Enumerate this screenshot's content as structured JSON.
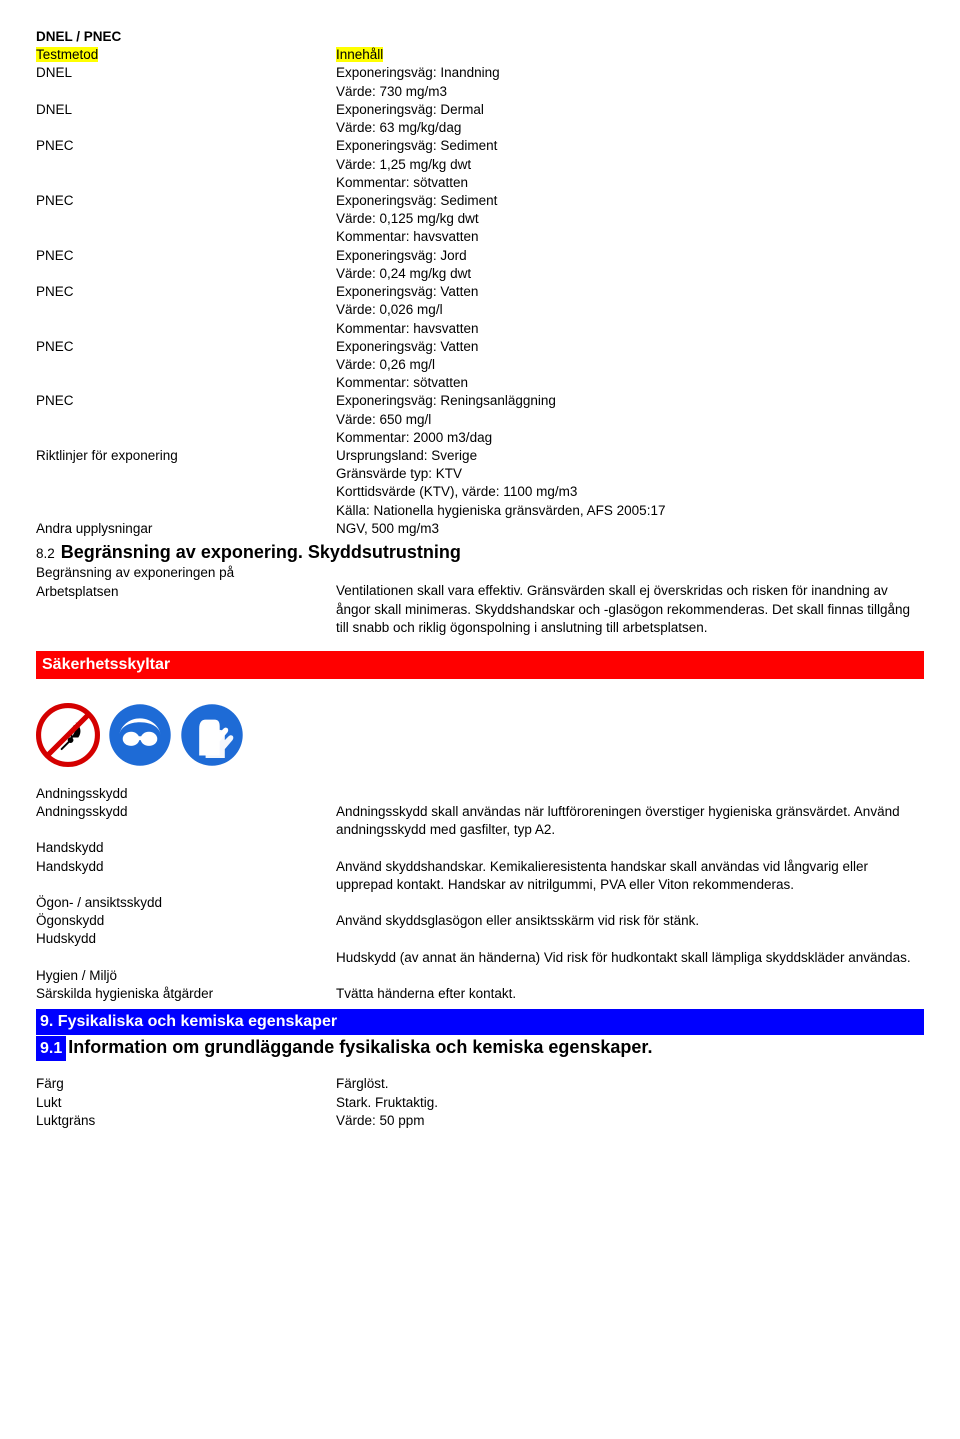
{
  "dnel_pnec_header": "DNEL / PNEC",
  "col_head_left": "Testmetod",
  "col_head_right": "Innehåll",
  "exposure_table": [
    {
      "label": "DNEL",
      "lines": [
        "Exponeringsväg: Inandning",
        "Värde: 730 mg/m3"
      ]
    },
    {
      "label": "DNEL",
      "lines": [
        "Exponeringsväg: Dermal",
        "Värde: 63 mg/kg/dag"
      ]
    },
    {
      "label": "PNEC",
      "lines": [
        "Exponeringsväg: Sediment",
        "Värde: 1,25 mg/kg dwt",
        "Kommentar: sötvatten"
      ]
    },
    {
      "label": "PNEC",
      "lines": [
        "Exponeringsväg: Sediment",
        "Värde: 0,125 mg/kg dwt",
        "Kommentar: havsvatten"
      ]
    },
    {
      "label": "PNEC",
      "lines": [
        "Exponeringsväg: Jord",
        "Värde: 0,24 mg/kg dwt"
      ]
    },
    {
      "label": "PNEC",
      "lines": [
        "Exponeringsväg: Vatten",
        "Värde: 0,026 mg/l",
        "Kommentar: havsvatten"
      ]
    },
    {
      "label": "PNEC",
      "lines": [
        "Exponeringsväg: Vatten",
        "Värde: 0,26 mg/l",
        "Kommentar: sötvatten"
      ]
    },
    {
      "label": "PNEC",
      "lines": [
        "Exponeringsväg: Reningsanläggning",
        "Värde: 650 mg/l",
        "Kommentar: 2000 m3/dag"
      ]
    },
    {
      "label": "Riktlinjer för exponering",
      "lines": [
        "Ursprungsland: Sverige",
        "Gränsvärde typ: KTV",
        "Korttidsvärde (KTV), värde: 1100 mg/m3",
        "Källa: Nationella hygieniska gränsvärden, AFS 2005:17"
      ]
    },
    {
      "label": "Andra upplysningar",
      "lines": [
        "NGV, 500 mg/m3"
      ]
    }
  ],
  "s82_num": "8.2",
  "s82_title": "Begränsning av exponering. Skyddsutrustning",
  "s82_row": {
    "label1": "Begränsning av exponeringen på",
    "label2": "Arbetsplatsen",
    "value": "Ventilationen skall vara effektiv. Gränsvärden skall ej överskridas och risken för inandning av ångor skall minimeras. Skyddshandskar och -glasögon rekommenderas. Det skall finnas tillgång till snabb och riklig ögonspolning i anslutning till arbetsplatsen."
  },
  "safety_signs_heading": "Säkerhetsskyltar",
  "icons": {
    "no_flame": {
      "ring": "#d40000",
      "bg": "#ffffff",
      "stroke": "#000000"
    },
    "goggles": {
      "bg": "#1e6bd6",
      "fg": "#ffffff"
    },
    "gloves": {
      "bg": "#1e6bd6",
      "fg": "#ffffff"
    }
  },
  "ppe": [
    {
      "label": "Andningsskydd",
      "value": null
    },
    {
      "label": "Andningsskydd",
      "value": "Andningsskydd skall användas när luftföroreningen överstiger hygieniska gränsvärdet. Använd andningsskydd med gasfilter, typ A2."
    },
    {
      "label": "Handskydd",
      "value": null
    },
    {
      "label": "Handskydd",
      "value": "Använd skyddshandskar. Kemikalieresistenta handskar skall användas vid långvarig eller upprepad kontakt. Handskar av nitrilgummi, PVA eller Viton rekommenderas."
    },
    {
      "label": "Ögon- / ansiktsskydd",
      "value": null
    },
    {
      "label": "Ögonskydd",
      "value": "Använd skyddsglasögon eller ansiktsskärm vid risk för stänk."
    },
    {
      "label": "Hudskydd",
      "value": null
    },
    {
      "label": "",
      "value": "Hudskydd (av annat än händerna) Vid risk för hudkontakt skall lämpliga skyddskläder användas."
    },
    {
      "label": "Hygien / Miljö",
      "value": null
    },
    {
      "label": "Särskilda hygieniska åtgärder",
      "value": "Tvätta händerna efter kontakt."
    }
  ],
  "s9_heading": "9. Fysikaliska och kemiska egenskaper",
  "s91_num": "9.1",
  "s91_title": "Information om grundläggande fysikaliska och kemiska egenskaper.",
  "fk": [
    {
      "label": "Färg",
      "value": "Färglöst."
    },
    {
      "label": "Lukt",
      "value": "Stark. Fruktaktig."
    },
    {
      "label": "Luktgräns",
      "value": "Värde: 50 ppm"
    }
  ]
}
